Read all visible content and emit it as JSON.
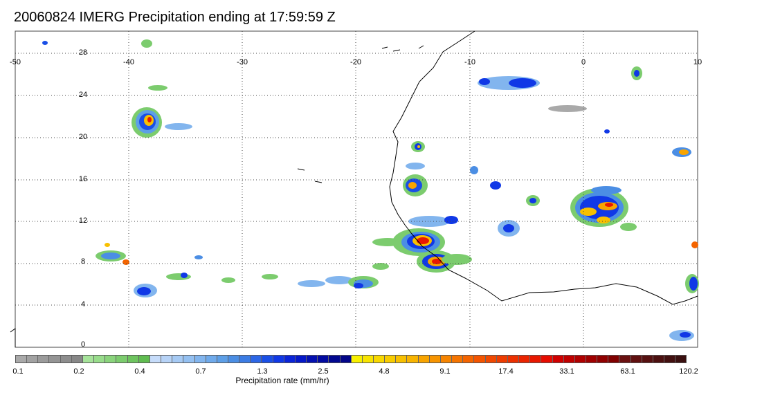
{
  "title": "20060824 IMERG Precipitation ending at 17:59:59 Z",
  "map": {
    "lon_labels": [
      "-50",
      "-40",
      "-30",
      "-20",
      "-10",
      "0",
      "10"
    ],
    "lat_labels": [
      "28",
      "24",
      "20",
      "16",
      "12",
      "8",
      "4",
      "0"
    ]
  },
  "colorbar": {
    "title": "Precipitation rate (mm/hr)",
    "tick_labels": [
      "0.1",
      "0.2",
      "0.4",
      "0.7",
      "1.3",
      "2.5",
      "4.8",
      "9.1",
      "17.4",
      "33.1",
      "63.1",
      "120.2"
    ],
    "colors": [
      "#a9a9a9",
      "#a2a2a2",
      "#9b9b9b",
      "#949494",
      "#8d8d8d",
      "#878787",
      "#a6e39a",
      "#98dc8b",
      "#8ad47c",
      "#7ccc6e",
      "#6ec45f",
      "#60bc50",
      "#c6dcfa",
      "#b7d3f7",
      "#a6caf4",
      "#94c0f1",
      "#82b5ee",
      "#6faaeb",
      "#5d9fe7",
      "#4b8ee4",
      "#3b7ce4",
      "#2c66e6",
      "#1a4fe6",
      "#1038e6",
      "#0a24d8",
      "#0518c8",
      "#0410b0",
      "#020aa0",
      "#020890",
      "#030688",
      "#f8f000",
      "#f8e400",
      "#f8d800",
      "#f8cc00",
      "#f8c000",
      "#f8b400",
      "#f8a400",
      "#f79400",
      "#f68400",
      "#f57400",
      "#f46400",
      "#f35400",
      "#f04800",
      "#ee3c00",
      "#ec3000",
      "#ea2400",
      "#e81800",
      "#e60c00",
      "#d00000",
      "#c00000",
      "#b00000",
      "#a00000",
      "#900000",
      "#800000",
      "#6a1010",
      "#601010",
      "#561010",
      "#4c1010",
      "#421010",
      "#3a1010"
    ]
  }
}
